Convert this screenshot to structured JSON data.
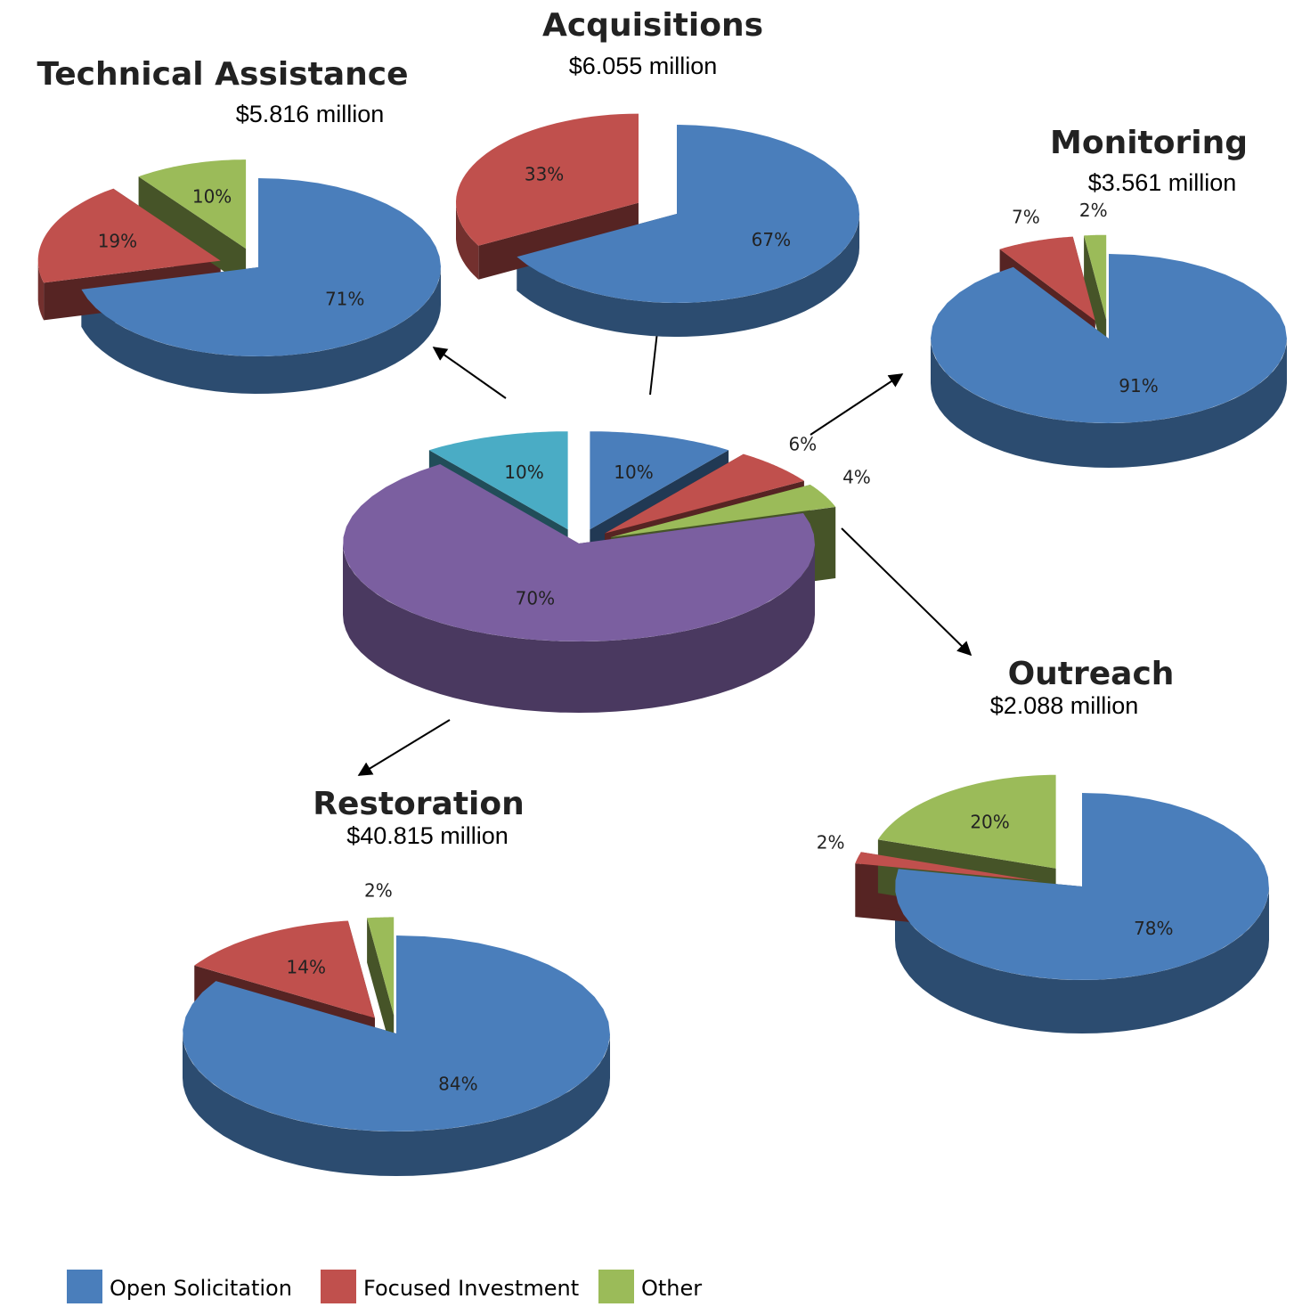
{
  "chart_data": [
    {
      "type": "pie",
      "values": [
        10,
        6,
        4,
        70,
        10
      ],
      "value_labels": [
        "10%",
        "6%",
        "4%",
        "70%",
        "10%"
      ],
      "colors": [
        "#4a7ebb",
        "#c0504d",
        "#9bbb59",
        "#7b5fa0",
        "#4aacc5"
      ]
    },
    {
      "type": "pie",
      "title": "Technical Assistance",
      "subtitle": "$5.816 million",
      "values": [
        71,
        19,
        10
      ],
      "value_labels": [
        "71%",
        "19%",
        "10%"
      ],
      "colors": [
        "#4a7ebb",
        "#c0504d",
        "#9bbb59"
      ]
    },
    {
      "type": "pie",
      "title": "Acquisitions",
      "subtitle": "$6.055 million",
      "values": [
        67,
        33
      ],
      "value_labels": [
        "67%",
        "33%"
      ],
      "colors": [
        "#4a7ebb",
        "#c0504d"
      ]
    },
    {
      "type": "pie",
      "title": "Monitoring",
      "subtitle": "$3.561 million",
      "values": [
        91,
        7,
        2
      ],
      "value_labels": [
        "91%",
        "7%",
        "2%"
      ],
      "colors": [
        "#4a7ebb",
        "#c0504d",
        "#9bbb59"
      ]
    },
    {
      "type": "pie",
      "title": "Outreach",
      "subtitle": "$2.088 million",
      "values": [
        78,
        2,
        20
      ],
      "value_labels": [
        "78%",
        "2%",
        "20%"
      ],
      "colors": [
        "#4a7ebb",
        "#c0504d",
        "#9bbb59"
      ]
    },
    {
      "type": "pie",
      "title": "Restoration",
      "subtitle": "$40.815 million",
      "values": [
        84,
        14,
        2
      ],
      "value_labels": [
        "84%",
        "14%",
        "2%"
      ],
      "colors": [
        "#4a7ebb",
        "#c0504d",
        "#9bbb59"
      ]
    }
  ],
  "legend": [
    {
      "name": "Open Solicitation",
      "color": "#4a7ebb"
    },
    {
      "name": "Focused Investment",
      "color": "#c0504d"
    },
    {
      "name": "Other",
      "color": "#9bbb59"
    }
  ]
}
